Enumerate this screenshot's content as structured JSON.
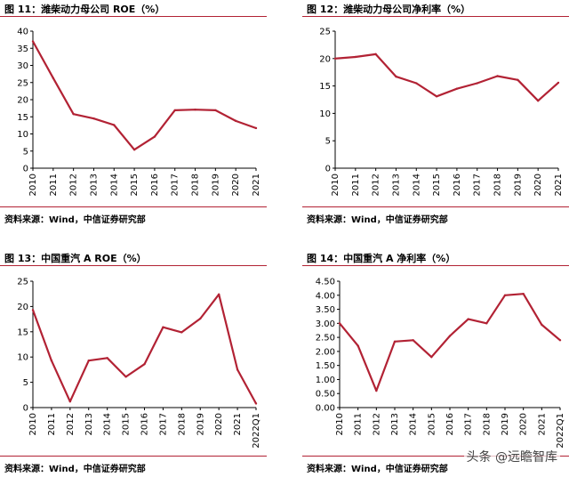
{
  "colors": {
    "line": "#b22234",
    "axis": "#000000"
  },
  "panels": [
    {
      "title": "图 11：潍柴动力母公司 ROE（%）",
      "source": "资料来源：Wind，中信证券研究部"
    },
    {
      "title": "图 12：潍柴动力母公司净利率（%）",
      "source": "资料来源：Wind，中信证券研究部"
    },
    {
      "title": "图 13：中国重汽 A ROE（%）",
      "source": "资料来源：Wind，中信证券研究部"
    },
    {
      "title": "图 14：中国重汽 A 净利率（%）",
      "source": "资料来源：Wind，中信证券研究部"
    }
  ],
  "watermark": "头条 @远瞻智库",
  "chart_data": [
    {
      "type": "line",
      "categories": [
        "2010",
        "2011",
        "2012",
        "2013",
        "2014",
        "2015",
        "2016",
        "2017",
        "2018",
        "2019",
        "2020",
        "2021"
      ],
      "values": [
        37,
        26.3,
        15.8,
        14.5,
        12.6,
        5.4,
        9.2,
        16.9,
        17.1,
        16.9,
        13.8,
        11.7
      ],
      "ylim": [
        0,
        40
      ],
      "yticks": [
        0,
        5,
        10,
        15,
        20,
        25,
        30,
        35,
        40
      ],
      "ytick_labels": [
        "0",
        "5",
        "10",
        "15",
        "20",
        "25",
        "30",
        "35",
        "40"
      ]
    },
    {
      "type": "line",
      "categories": [
        "2010",
        "2011",
        "2012",
        "2013",
        "2014",
        "2015",
        "2016",
        "2017",
        "2018",
        "2019",
        "2020",
        "2021"
      ],
      "values": [
        20,
        20.3,
        20.8,
        16.7,
        15.5,
        13.1,
        14.5,
        15.5,
        16.8,
        16.1,
        12.3,
        15.6
      ],
      "ylim": [
        0,
        25
      ],
      "yticks": [
        0,
        5,
        10,
        15,
        20,
        25
      ],
      "ytick_labels": [
        "0",
        "5",
        "10",
        "15",
        "20",
        "25"
      ]
    },
    {
      "type": "line",
      "categories": [
        "2010",
        "2011",
        "2012",
        "2013",
        "2014",
        "2015",
        "2016",
        "2017",
        "2018",
        "2019",
        "2020",
        "2021",
        "2022Q1"
      ],
      "values": [
        19.3,
        9.3,
        1.2,
        9.3,
        9.8,
        6.1,
        8.6,
        15.9,
        14.9,
        17.6,
        22.4,
        7.5,
        0.8
      ],
      "ylim": [
        0,
        25
      ],
      "yticks": [
        0,
        5,
        10,
        15,
        20,
        25
      ],
      "ytick_labels": [
        "0",
        "5",
        "10",
        "15",
        "20",
        "25"
      ]
    },
    {
      "type": "line",
      "categories": [
        "2010",
        "2011",
        "2012",
        "2013",
        "2014",
        "2015",
        "2016",
        "2017",
        "2018",
        "2019",
        "2020",
        "2021",
        "2022Q1"
      ],
      "values": [
        3.0,
        2.2,
        0.6,
        2.35,
        2.4,
        1.8,
        2.55,
        3.15,
        3.0,
        4.0,
        4.05,
        2.95,
        2.4
      ],
      "ylim": [
        0,
        4.5
      ],
      "yticks": [
        0,
        0.5,
        1,
        1.5,
        2,
        2.5,
        3,
        3.5,
        4,
        4.5
      ],
      "ytick_labels": [
        "0.00",
        "0.50",
        "1.00",
        "1.50",
        "2.00",
        "2.50",
        "3.00",
        "3.50",
        "4.00",
        "4.50"
      ]
    }
  ]
}
